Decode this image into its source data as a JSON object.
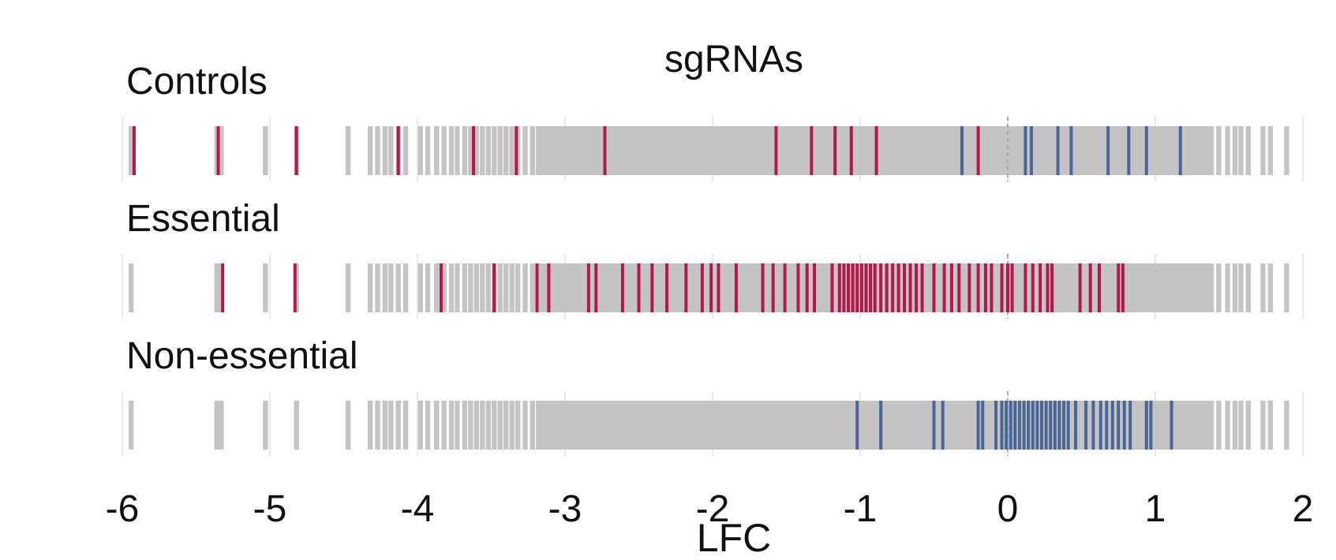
{
  "chart_data": {
    "type": "barcode",
    "title": "sgRNAs",
    "xlabel": "LFC",
    "xlim": [
      -6,
      2
    ],
    "xticks": [
      -6,
      -5,
      -4,
      -3,
      -2,
      -1,
      0,
      1,
      2
    ],
    "reference_line": 0,
    "gridlines": true,
    "colors": {
      "highlight_negative": "#b5174b",
      "highlight_positive": "#4a6597",
      "background_sgrna": "#c4c4c4",
      "grid": "#e9e9e9",
      "reference": "#aaaaaa"
    },
    "background_sgrnas": [
      -5.94,
      -5.36,
      -5.33,
      -5.03,
      -4.82,
      -4.47,
      -4.32,
      -4.27,
      -4.22,
      -4.18,
      -4.13,
      -4.08,
      -3.98,
      -3.93,
      -3.87,
      -3.82,
      -3.77,
      -3.73,
      -3.68,
      -3.64,
      -3.6,
      -3.56,
      -3.52,
      -3.48,
      -3.44,
      -3.4,
      -3.36,
      -3.32,
      -3.27,
      -3.22,
      -3.18,
      -3.15,
      -3.12,
      -3.09,
      -3.06,
      -3.03,
      -3.0,
      -2.97,
      -2.94,
      -2.91,
      -2.88,
      -2.85,
      -2.82,
      -2.79,
      -2.76,
      -2.73,
      -2.7,
      -2.67,
      -2.64,
      -2.61,
      -2.58,
      -2.55,
      -2.52,
      -2.49,
      -2.46,
      -2.43,
      -2.4,
      -2.37,
      -2.34,
      -2.31,
      -2.28,
      -2.25,
      -2.22,
      -2.19,
      -2.16,
      -2.13,
      -2.1,
      -2.07,
      -2.04,
      -2.01,
      -1.98,
      -1.95,
      -1.92,
      -1.89,
      -1.86,
      -1.83,
      -1.8,
      -1.77,
      -1.74,
      -1.71,
      -1.68,
      -1.65,
      -1.62,
      -1.59,
      -1.56,
      -1.53,
      -1.5,
      -1.47,
      -1.44,
      -1.41,
      -1.38,
      -1.35,
      -1.32,
      -1.29,
      -1.26,
      -1.23,
      -1.2,
      -1.17,
      -1.14,
      -1.11,
      -1.08,
      -1.05,
      -1.02,
      -0.99,
      -0.96,
      -0.93,
      -0.9,
      -0.87,
      -0.84,
      -0.81,
      -0.78,
      -0.75,
      -0.72,
      -0.69,
      -0.66,
      -0.63,
      -0.6,
      -0.57,
      -0.54,
      -0.51,
      -0.48,
      -0.45,
      -0.42,
      -0.39,
      -0.36,
      -0.33,
      -0.3,
      -0.27,
      -0.24,
      -0.21,
      -0.18,
      -0.15,
      -0.12,
      -0.09,
      -0.06,
      -0.03,
      0.0,
      0.03,
      0.06,
      0.09,
      0.12,
      0.15,
      0.18,
      0.21,
      0.24,
      0.27,
      0.3,
      0.33,
      0.36,
      0.39,
      0.42,
      0.45,
      0.48,
      0.51,
      0.54,
      0.57,
      0.6,
      0.63,
      0.66,
      0.69,
      0.72,
      0.75,
      0.78,
      0.81,
      0.84,
      0.87,
      0.9,
      0.93,
      0.96,
      0.99,
      1.02,
      1.05,
      1.08,
      1.11,
      1.14,
      1.17,
      1.2,
      1.23,
      1.26,
      1.29,
      1.32,
      1.35,
      1.38,
      1.43,
      1.49,
      1.54,
      1.58,
      1.63,
      1.73,
      1.78,
      1.89
    ],
    "panels": [
      {
        "label": "Controls",
        "highlight_negative": [
          -5.92,
          -5.35,
          -4.82,
          -4.13,
          -3.62,
          -3.33,
          -2.73,
          -1.57,
          -1.33,
          -1.17,
          -1.06,
          -0.89,
          -0.2
        ],
        "highlight_positive": [
          -0.31,
          0.12,
          0.16,
          0.34,
          0.43,
          0.68,
          0.82,
          0.94,
          1.17
        ]
      },
      {
        "label": "Essential",
        "highlight_negative": [
          -5.32,
          -4.83,
          -3.84,
          -3.48,
          -3.19,
          -3.11,
          -2.84,
          -2.79,
          -2.61,
          -2.5,
          -2.41,
          -2.31,
          -2.18,
          -2.07,
          -2.01,
          -1.96,
          -1.84,
          -1.66,
          -1.59,
          -1.51,
          -1.42,
          -1.36,
          -1.31,
          -1.19,
          -1.14,
          -1.11,
          -1.08,
          -1.05,
          -1.02,
          -0.99,
          -0.96,
          -0.93,
          -0.9,
          -0.86,
          -0.82,
          -0.78,
          -0.74,
          -0.7,
          -0.66,
          -0.62,
          -0.58,
          -0.5,
          -0.43,
          -0.38,
          -0.33,
          -0.26,
          -0.2,
          -0.15,
          -0.11,
          -0.04,
          0.0,
          0.03,
          0.12,
          0.17,
          0.22,
          0.27,
          0.3,
          0.49,
          0.56,
          0.62,
          0.75,
          0.78
        ],
        "highlight_positive": []
      },
      {
        "label": "Non-essential",
        "highlight_negative": [],
        "highlight_positive": [
          -1.02,
          -0.86,
          -0.5,
          -0.44,
          -0.2,
          -0.17,
          -0.08,
          -0.04,
          -0.01,
          0.02,
          0.05,
          0.08,
          0.11,
          0.14,
          0.17,
          0.2,
          0.23,
          0.26,
          0.29,
          0.32,
          0.35,
          0.38,
          0.41,
          0.46,
          0.53,
          0.58,
          0.63,
          0.67,
          0.71,
          0.75,
          0.79,
          0.83,
          0.94,
          0.97,
          1.11
        ]
      }
    ]
  }
}
